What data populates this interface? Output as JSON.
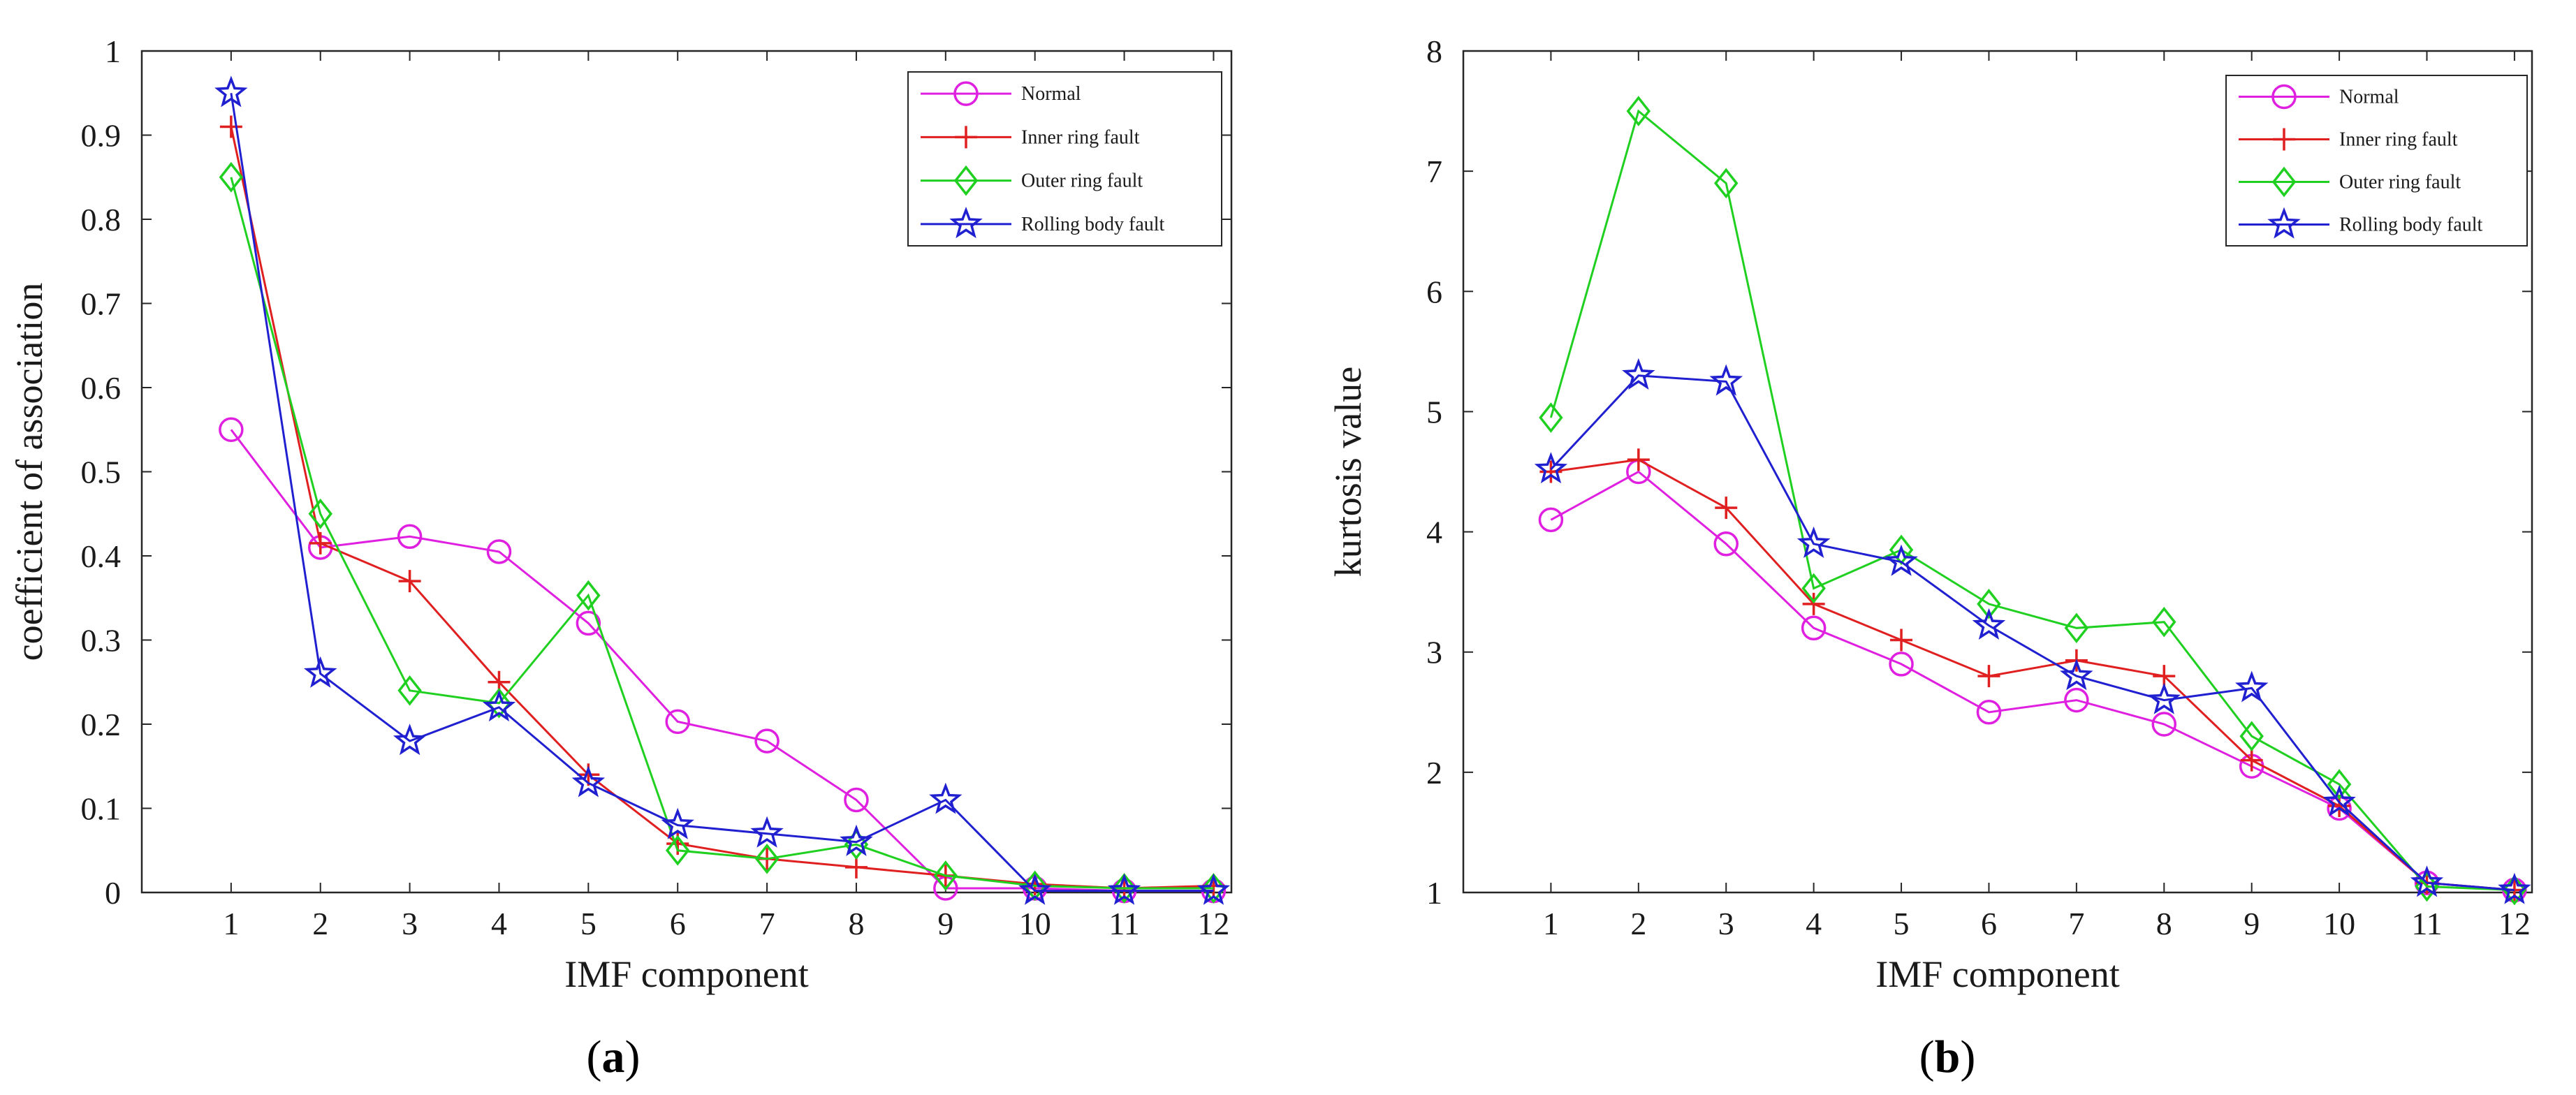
{
  "chart_data": [
    {
      "type": "line",
      "panel_label": "a",
      "xlabel": "IMF component",
      "ylabel": "coefficient of association",
      "x": [
        1,
        2,
        3,
        4,
        5,
        6,
        7,
        8,
        9,
        10,
        11,
        12
      ],
      "xlim": [
        0,
        12.2
      ],
      "ylim": [
        0,
        1
      ],
      "yticks": [
        0,
        0.1,
        0.2,
        0.3,
        0.4,
        0.5,
        0.6,
        0.7,
        0.8,
        0.9,
        1
      ],
      "ytick_labels": [
        "0",
        "0.1",
        "0.2",
        "0.3",
        "0.4",
        "0.5",
        "0.6",
        "0.7",
        "0.8",
        "0.9",
        "1"
      ],
      "legend_position": "top-right",
      "series": [
        {
          "name": "Normal",
          "color": "#e020e0",
          "marker": "circle",
          "values": [
            0.55,
            0.41,
            0.423,
            0.405,
            0.32,
            0.203,
            0.18,
            0.11,
            0.005,
            0.005,
            0.002,
            0.002
          ]
        },
        {
          "name": "Inner ring fault",
          "color": "#e02020",
          "marker": "plus",
          "values": [
            0.91,
            0.415,
            0.37,
            0.25,
            0.14,
            0.058,
            0.04,
            0.03,
            0.02,
            0.01,
            0.005,
            0.008
          ]
        },
        {
          "name": "Outer ring fault",
          "color": "#20d020",
          "marker": "diamond",
          "values": [
            0.85,
            0.45,
            0.24,
            0.225,
            0.353,
            0.05,
            0.04,
            0.057,
            0.02,
            0.008,
            0.005,
            0.005
          ]
        },
        {
          "name": "Rolling body fault",
          "color": "#2020d0",
          "marker": "star",
          "values": [
            0.95,
            0.26,
            0.18,
            0.22,
            0.13,
            0.08,
            0.07,
            0.06,
            0.11,
            0.002,
            0.002,
            0.002
          ]
        }
      ]
    },
    {
      "type": "line",
      "panel_label": "b",
      "xlabel": "IMF component",
      "ylabel": "kurtosis value",
      "x": [
        1,
        2,
        3,
        4,
        5,
        6,
        7,
        8,
        9,
        10,
        11,
        12
      ],
      "xlim": [
        0,
        12.2
      ],
      "ylim": [
        1,
        8
      ],
      "yticks": [
        1,
        2,
        3,
        4,
        5,
        6,
        7,
        8
      ],
      "ytick_labels": [
        "1",
        "2",
        "3",
        "4",
        "5",
        "6",
        "7",
        "8"
      ],
      "legend_position": "top-right",
      "series": [
        {
          "name": "Normal",
          "color": "#e020e0",
          "marker": "circle",
          "values": [
            4.1,
            4.5,
            3.9,
            3.2,
            2.9,
            2.5,
            2.6,
            2.4,
            2.05,
            1.7,
            1.08,
            1.02
          ]
        },
        {
          "name": "Inner ring fault",
          "color": "#e02020",
          "marker": "plus",
          "values": [
            4.5,
            4.6,
            4.2,
            3.4,
            3.1,
            2.8,
            2.93,
            2.8,
            2.1,
            1.72,
            1.08,
            1.02
          ]
        },
        {
          "name": "Outer ring fault",
          "color": "#20d020",
          "marker": "diamond",
          "values": [
            4.95,
            7.5,
            6.9,
            3.53,
            3.85,
            3.4,
            3.2,
            3.25,
            2.3,
            1.9,
            1.05,
            1.02
          ]
        },
        {
          "name": "Rolling body fault",
          "color": "#2020d0",
          "marker": "star",
          "values": [
            4.52,
            5.3,
            5.25,
            3.9,
            3.75,
            3.22,
            2.8,
            2.6,
            2.7,
            1.75,
            1.08,
            1.02
          ]
        }
      ]
    }
  ]
}
